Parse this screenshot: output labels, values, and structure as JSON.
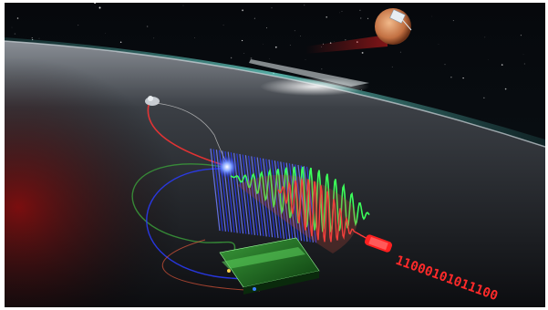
{
  "illustration": {
    "binary_stream": "11000101011100",
    "colors": {
      "frame": "#ffffff",
      "space": "#050608",
      "horizon_glow": "#5fd4c8",
      "lunar_surface": "#2b2e33",
      "red_laser": "#ff2020",
      "green_wave": "#3cff5a",
      "blue_grating": "#2a3cff",
      "planet": "#c97a4a"
    },
    "icons": [
      "planet-icon",
      "satellite-icon",
      "detector-icon",
      "fiber-icon"
    ]
  }
}
